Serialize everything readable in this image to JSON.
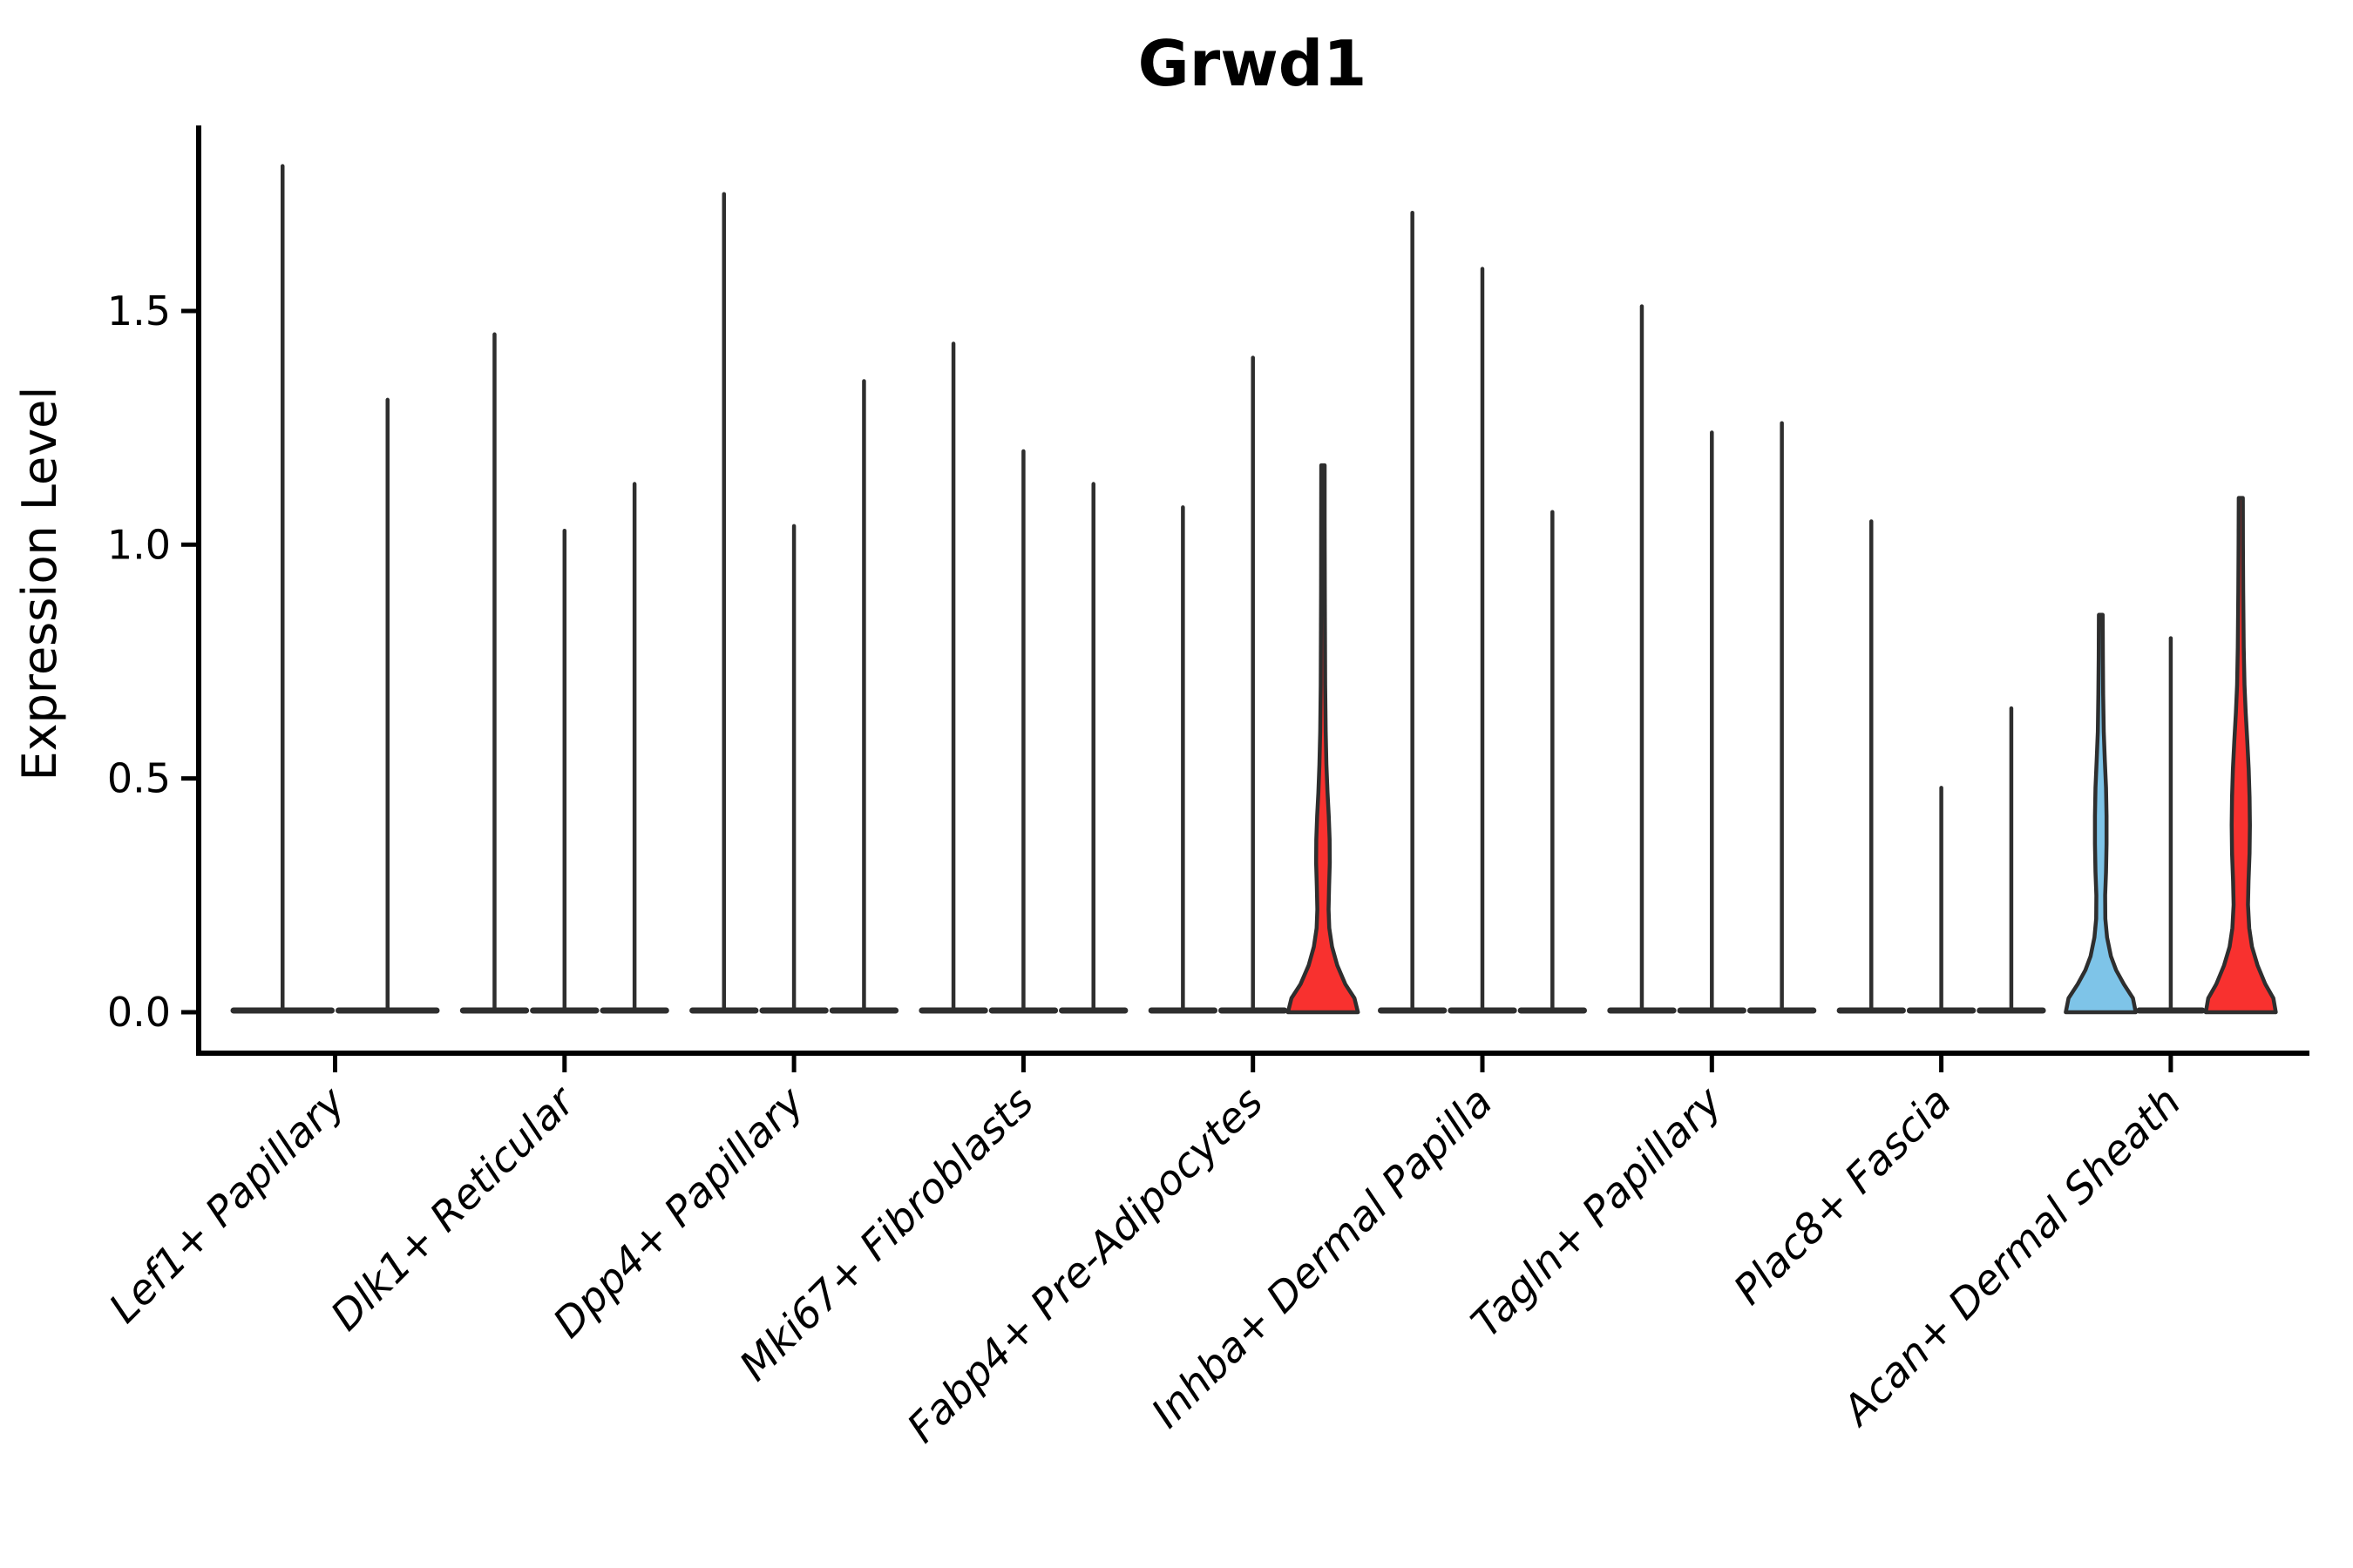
{
  "chart_data": {
    "type": "violin",
    "title": "Grwd1",
    "ylabel": "Expression Level",
    "xlabel": "",
    "grid": false,
    "legend": "none",
    "ylim": [
      -0.09,
      1.9
    ],
    "yticks": [
      {
        "label": "0.0",
        "value": 0.0
      },
      {
        "label": "0.5",
        "value": 0.5
      },
      {
        "label": "1.0",
        "value": 1.0
      },
      {
        "label": "1.5",
        "value": 1.5
      }
    ],
    "categories": [
      "Lef1+ Papillary",
      "Dlk1+ Reticular",
      "Dpp4+ Papillary",
      "Mki67+ Fibroblasts",
      "Fabp4+ Pre-Adipocytes",
      "Inhba+ Dermal Papilla",
      "Tagln+ Papillary",
      "Plac8+ Fascia",
      "Acan+ Dermal Sheath"
    ],
    "colors": {
      "red": "#F8312F",
      "blue": "#7EC4E8",
      "outline": "#2E2E2E",
      "axis": "#000000"
    },
    "groups": [
      {
        "label": "Lef1+ Papillary",
        "violins": [
          {
            "max": 1.81,
            "style": "thin"
          },
          {
            "max": 1.31,
            "style": "thin"
          }
        ]
      },
      {
        "label": "Dlk1+ Reticular",
        "violins": [
          {
            "max": 1.45,
            "style": "thin"
          },
          {
            "max": 1.03,
            "style": "thin"
          },
          {
            "max": 1.13,
            "style": "thin"
          }
        ]
      },
      {
        "label": "Dpp4+ Papillary",
        "violins": [
          {
            "max": 1.75,
            "style": "thin"
          },
          {
            "max": 1.04,
            "style": "thin"
          },
          {
            "max": 1.35,
            "style": "thin"
          }
        ]
      },
      {
        "label": "Mki67+ Fibroblasts",
        "violins": [
          {
            "max": 1.43,
            "style": "thin"
          },
          {
            "max": 1.2,
            "style": "thin"
          },
          {
            "max": 1.13,
            "style": "thin"
          }
        ]
      },
      {
        "label": "Fabp4+ Pre-Adipocytes",
        "violins": [
          {
            "max": 1.08,
            "style": "thin"
          },
          {
            "max": 1.4,
            "style": "thin"
          },
          {
            "max": 1.17,
            "style": "red",
            "profile": [
              [
                0.0,
                1.0
              ],
              [
                0.03,
                0.9
              ],
              [
                0.06,
                0.64
              ],
              [
                0.1,
                0.41
              ],
              [
                0.14,
                0.26
              ],
              [
                0.18,
                0.18
              ],
              [
                0.22,
                0.16
              ],
              [
                0.27,
                0.175
              ],
              [
                0.32,
                0.195
              ],
              [
                0.37,
                0.19
              ],
              [
                0.42,
                0.165
              ],
              [
                0.47,
                0.13
              ],
              [
                0.53,
                0.1
              ],
              [
                0.6,
                0.078
              ],
              [
                0.7,
                0.063
              ],
              [
                0.9,
                0.053
              ],
              [
                1.05,
                0.05
              ],
              [
                1.17,
                0.048
              ]
            ]
          }
        ]
      },
      {
        "label": "Inhba+ Dermal Papilla",
        "violins": [
          {
            "max": 1.71,
            "style": "thin"
          },
          {
            "max": 1.59,
            "style": "thin"
          },
          {
            "max": 1.07,
            "style": "thin"
          }
        ]
      },
      {
        "label": "Tagln+ Papillary",
        "violins": [
          {
            "max": 1.51,
            "style": "thin"
          },
          {
            "max": 1.24,
            "style": "thin"
          },
          {
            "max": 1.26,
            "style": "thin"
          }
        ]
      },
      {
        "label": "Plac8+ Fascia",
        "violins": [
          {
            "max": 1.05,
            "style": "thin"
          },
          {
            "max": 0.48,
            "style": "thin"
          },
          {
            "max": 0.65,
            "style": "thin"
          }
        ]
      },
      {
        "label": "Acan+ Dermal Sheath",
        "violins": [
          {
            "max": 0.85,
            "style": "blue",
            "profile": [
              [
                0.0,
                1.0
              ],
              [
                0.03,
                0.92
              ],
              [
                0.06,
                0.66
              ],
              [
                0.09,
                0.44
              ],
              [
                0.12,
                0.29
              ],
              [
                0.16,
                0.18
              ],
              [
                0.2,
                0.13
              ],
              [
                0.25,
                0.125
              ],
              [
                0.3,
                0.15
              ],
              [
                0.36,
                0.165
              ],
              [
                0.42,
                0.165
              ],
              [
                0.48,
                0.15
              ],
              [
                0.54,
                0.115
              ],
              [
                0.6,
                0.085
              ],
              [
                0.68,
                0.068
              ],
              [
                0.76,
                0.06
              ],
              [
                0.85,
                0.055
              ]
            ]
          },
          {
            "max": 0.8,
            "style": "thin"
          },
          {
            "max": 1.1,
            "style": "red",
            "profile": [
              [
                0.0,
                1.0
              ],
              [
                0.03,
                0.93
              ],
              [
                0.06,
                0.7
              ],
              [
                0.1,
                0.48
              ],
              [
                0.14,
                0.32
              ],
              [
                0.18,
                0.24
              ],
              [
                0.23,
                0.205
              ],
              [
                0.28,
                0.22
              ],
              [
                0.34,
                0.25
              ],
              [
                0.4,
                0.26
              ],
              [
                0.46,
                0.25
              ],
              [
                0.52,
                0.225
              ],
              [
                0.58,
                0.185
              ],
              [
                0.64,
                0.14
              ],
              [
                0.7,
                0.105
              ],
              [
                0.78,
                0.085
              ],
              [
                0.9,
                0.07
              ],
              [
                1.0,
                0.062
              ],
              [
                1.1,
                0.058
              ]
            ]
          }
        ]
      }
    ]
  }
}
